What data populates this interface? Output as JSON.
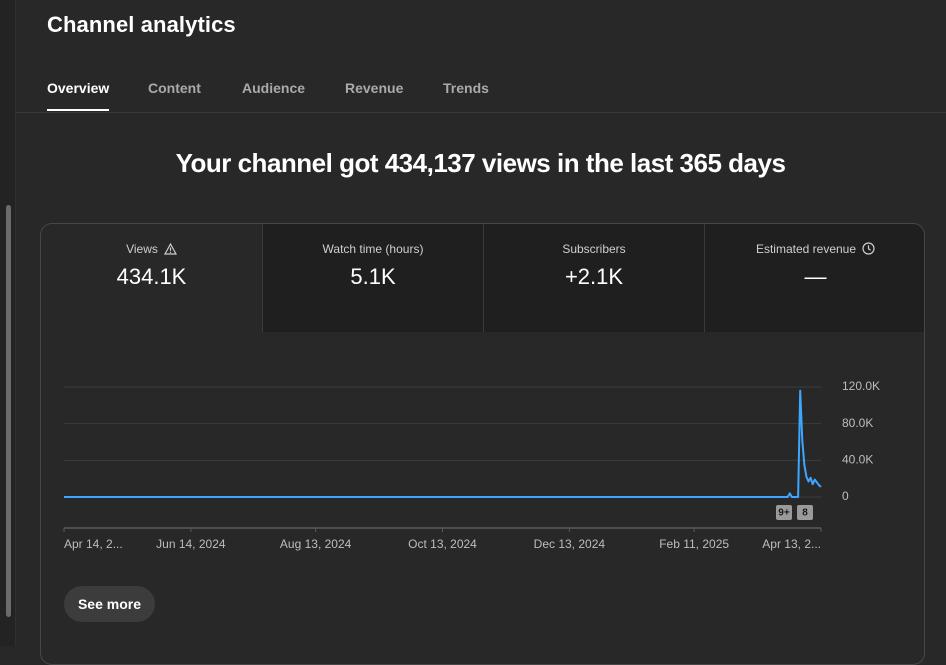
{
  "header": {
    "title": "Channel analytics"
  },
  "tabs": [
    "Overview",
    "Content",
    "Audience",
    "Revenue",
    "Trends"
  ],
  "active_tab": 0,
  "headline": "Your channel got 434,137 views in the last 365 days",
  "metrics": [
    {
      "label": "Views",
      "value": "434.1K"
    },
    {
      "label": "Watch time (hours)",
      "value": "5.1K"
    },
    {
      "label": "Subscribers",
      "value": "+2.1K"
    },
    {
      "label": "Estimated revenue",
      "value": "—"
    }
  ],
  "chart_data": {
    "type": "line",
    "x": [
      "Apr 14, 2024",
      "Mar 28, 2025",
      "Mar 29, 2025",
      "Mar 30, 2025",
      "Apr 2, 2025",
      "Apr 3, 2025",
      "Apr 4, 2025",
      "Apr 5, 2025",
      "Apr 6, 2025",
      "Apr 7, 2025",
      "Apr 8, 2025",
      "Apr 9, 2025",
      "Apr 10, 2025",
      "Apr 11, 2025",
      "Apr 12, 2025",
      "Apr 13, 2025"
    ],
    "values": [
      0,
      0,
      4000,
      0,
      0,
      116000,
      62000,
      35000,
      22000,
      17000,
      21000,
      14000,
      19000,
      16000,
      13000,
      11000
    ],
    "color": "#3ea6ff",
    "xlim": [
      "Apr 14, 2024",
      "Apr 13, 2025"
    ],
    "xticks": [
      {
        "value": "Apr 14, 2024",
        "label": "Apr 14, 2..."
      },
      "Jun 14, 2024",
      "Aug 13, 2024",
      "Oct 13, 2024",
      "Dec 13, 2024",
      "Feb 11, 2025",
      {
        "value": "Apr 13, 2025",
        "label": "Apr 13, 2..."
      }
    ],
    "ylim": [
      0,
      120000
    ],
    "yticks": [
      0,
      {
        "value": 40000,
        "label": "40.0K"
      },
      {
        "value": 80000,
        "label": "80.0K"
      },
      {
        "value": 120000,
        "label": "120.0K"
      }
    ],
    "grid": true,
    "markers": [
      "9+",
      "8"
    ]
  },
  "button": "See more"
}
